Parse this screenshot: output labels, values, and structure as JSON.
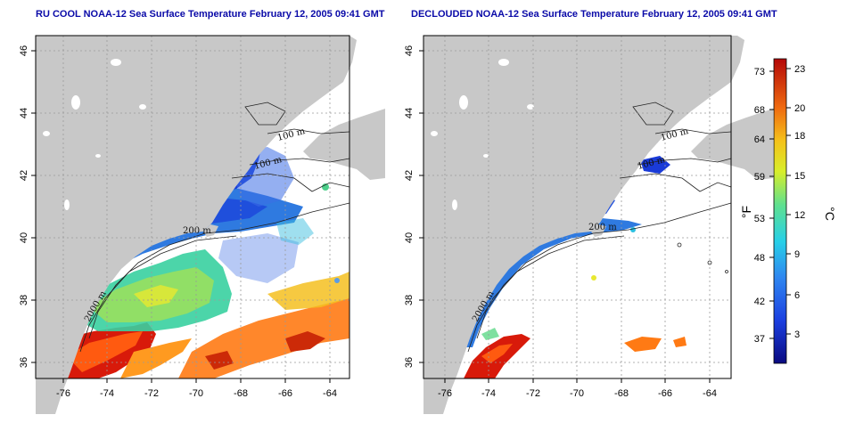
{
  "left_title": "RU COOL NOAA-12 Sea Surface Temperature February 12, 2005 09:41 GMT",
  "right_title": "DECLOUDED NOAA-12 Sea Surface Temperature February 12, 2005 09:41 GMT",
  "map": {
    "lon_range": [
      -77,
      -63
    ],
    "lat_range": [
      35,
      46
    ],
    "lon_ticks": [
      "-76",
      "-74",
      "-72",
      "-70",
      "-68",
      "-66",
      "-64"
    ],
    "lat_ticks": [
      "36",
      "38",
      "40",
      "42",
      "44",
      "46"
    ],
    "contour_labels": [
      "100 m",
      "100 m",
      "200 m",
      "200 m",
      "2000 m"
    ]
  },
  "colorbar": {
    "f_label": "°F",
    "c_label": "°C",
    "f_ticks": [
      "73",
      "68",
      "64",
      "59",
      "53",
      "48",
      "42",
      "37"
    ],
    "c_ticks": [
      "23",
      "20",
      "18",
      "15",
      "12",
      "9",
      "6",
      "3"
    ]
  },
  "colors": {
    "land": "#c8c8c8",
    "title": "#0a0aa8",
    "cold": "#1a3dd8",
    "warm": "#c81a0a"
  }
}
